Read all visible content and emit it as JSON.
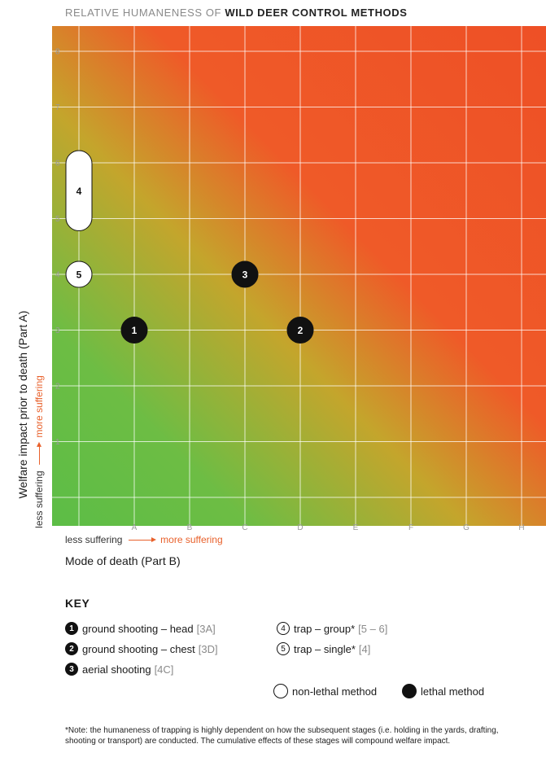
{
  "title": {
    "prefix": "RELATIVE HUMANENESS OF",
    "bold": "WILD DEER CONTROL METHODS"
  },
  "chart_data": {
    "type": "scatter",
    "x_categories": [
      "",
      "A",
      "B",
      "C",
      "D",
      "E",
      "F",
      "G",
      "H"
    ],
    "y_ticks": [
      "1",
      "2",
      "3",
      "4",
      "5",
      "6",
      "7",
      "8"
    ],
    "ylim": [
      0,
      9
    ],
    "xlabel": "Mode of death (Part B)",
    "ylabel": "Welfare impact prior to death (Part A)",
    "x_hint": {
      "low": "less suffering",
      "high": "more suffering"
    },
    "y_hint": {
      "low": "less suffering",
      "high": "more suffering"
    },
    "background": "gradient from green (low suffering, bottom-left) to red-orange (high suffering, top-right)",
    "grid": true,
    "colors": {
      "green": "#5cbd46",
      "olive": "#c4a52c",
      "orange": "#ef5a28",
      "marker": "#111111"
    },
    "points": [
      {
        "label": "1",
        "x": "A",
        "y": 3,
        "lethal": true
      },
      {
        "label": "2",
        "x": "D",
        "y": 3,
        "lethal": true
      },
      {
        "label": "3",
        "x": "C",
        "y": 4,
        "lethal": true
      },
      {
        "label": "5",
        "x": "",
        "y": 4,
        "lethal": false
      },
      {
        "label": "4",
        "x": "",
        "y_range": [
          5,
          6
        ],
        "lethal": false
      }
    ]
  },
  "key": {
    "title": "KEY",
    "items": [
      {
        "badge": "1",
        "filled": true,
        "text": "ground shooting – head",
        "code": "[3A]"
      },
      {
        "badge": "2",
        "filled": true,
        "text": "ground shooting – chest",
        "code": "[3D]"
      },
      {
        "badge": "3",
        "filled": true,
        "text": "aerial shooting",
        "code": "[4C]"
      },
      {
        "badge": "4",
        "filled": false,
        "text": "trap – group*",
        "code": "[5 – 6]"
      },
      {
        "badge": "5",
        "filled": false,
        "text": "trap – single*",
        "code": "[4]"
      }
    ],
    "legend": {
      "nonlethal": "non-lethal method",
      "lethal": "lethal method"
    }
  },
  "note": "*Note: the humaneness of trapping is highly dependent on how the subsequent stages (i.e. holding in the yards, drafting, shooting or transport) are conducted. The cumulative effects of these stages will compound welfare impact."
}
